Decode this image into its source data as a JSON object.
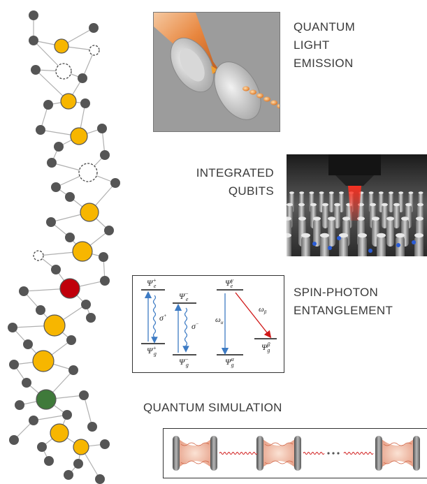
{
  "labels": {
    "emission_line1": "QUANTUM",
    "emission_line2": "LIGHT",
    "emission_line3": "EMISSION",
    "qubits_line1": "INTEGRATED",
    "qubits_line2": "QUBITS",
    "entanglement_line1": "SPIN-PHOTON",
    "entanglement_line2": "ENTANGLEMENT",
    "simulation": "QUANTUM SIMULATION"
  },
  "energy_levels": {
    "psi_e_plus": "Ψ",
    "psi_e_plus_sup": "+",
    "psi_e_plus_sub": "e",
    "psi_e_minus": "Ψ",
    "psi_e_minus_sup": "−",
    "psi_e_minus_sub": "e",
    "psi_e_gamma": "Ψ",
    "psi_e_gamma_sup": "γ",
    "psi_e_gamma_sub": "e",
    "psi_g_plus": "Ψ",
    "psi_g_plus_sup": "+",
    "psi_g_plus_sub": "g",
    "psi_g_minus": "Ψ",
    "psi_g_minus_sup": "−",
    "psi_g_minus_sub": "g",
    "psi_g_alpha": "Ψ",
    "psi_g_alpha_sup": "α",
    "psi_g_alpha_sub": "g",
    "psi_g_beta": "Ψ",
    "psi_g_beta_sup": "β",
    "psi_g_beta_sub": "g",
    "sigma_plus": "σ",
    "sigma_plus_sup": "+",
    "sigma_minus": "σ",
    "sigma_minus_sup": "−",
    "omega_alpha": "ω",
    "omega_alpha_sub": "α",
    "omega_beta": "ω",
    "omega_beta_sub": "β"
  },
  "colors": {
    "atom_gray": "#555555",
    "defect_yellow": "#f7b600",
    "defect_red": "#c0000b",
    "defect_green": "#3f7a3a",
    "bond": "#b0b0b0",
    "arrow_blue": "#3d7bc4",
    "arrow_red": "#d01818",
    "laser_orange": "#e8863e"
  }
}
